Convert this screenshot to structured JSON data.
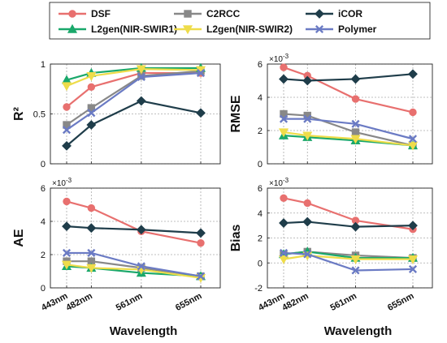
{
  "legend": {
    "entries": [
      {
        "name": "DSF",
        "color": "#e8706f",
        "marker": "circle"
      },
      {
        "name": "C2RCC",
        "color": "#888888",
        "marker": "square"
      },
      {
        "name": "iCOR",
        "color": "#1f3d4a",
        "marker": "diamond"
      },
      {
        "name": "L2gen(NIR-SWIR1)",
        "color": "#1aa86b",
        "marker": "triangle-up"
      },
      {
        "name": "L2gen(NIR-SWIR2)",
        "color": "#eedc4a",
        "marker": "triangle-down"
      },
      {
        "name": "Polymer",
        "color": "#6b7bc4",
        "marker": "x"
      }
    ]
  },
  "chart_data": [
    {
      "type": "line",
      "ylabel": "R²",
      "xlabel": "",
      "exponent": "",
      "categories": [
        "443nm",
        "482nm",
        "561nm",
        "655nm"
      ],
      "x": [
        443,
        482,
        561,
        655
      ],
      "ylim": [
        0,
        1
      ],
      "yticks": [
        0,
        0.5,
        1
      ],
      "ytick_labels": [
        "0",
        "0.5",
        "1"
      ],
      "grid": true,
      "series": [
        {
          "name": "DSF",
          "values": [
            0.57,
            0.77,
            0.91,
            0.91
          ]
        },
        {
          "name": "C2RCC",
          "values": [
            0.39,
            0.56,
            0.88,
            0.93
          ]
        },
        {
          "name": "iCOR",
          "values": [
            0.18,
            0.39,
            0.63,
            0.51
          ]
        },
        {
          "name": "L2gen(NIR-SWIR1)",
          "values": [
            0.84,
            0.91,
            0.96,
            0.96
          ]
        },
        {
          "name": "L2gen(NIR-SWIR2)",
          "values": [
            0.78,
            0.88,
            0.95,
            0.94
          ]
        },
        {
          "name": "Polymer",
          "values": [
            0.34,
            0.51,
            0.87,
            0.91
          ]
        }
      ]
    },
    {
      "type": "line",
      "ylabel": "RMSE",
      "xlabel": "",
      "exponent": "-3",
      "categories": [
        "443nm",
        "482nm",
        "561nm",
        "655nm"
      ],
      "x": [
        443,
        482,
        561,
        655
      ],
      "ylim": [
        0,
        6
      ],
      "yticks": [
        0,
        2,
        4,
        6
      ],
      "ytick_labels": [
        "0",
        "2",
        "4",
        "6"
      ],
      "grid": true,
      "series": [
        {
          "name": "DSF",
          "values": [
            5.8,
            5.3,
            3.9,
            3.1
          ]
        },
        {
          "name": "C2RCC",
          "values": [
            3.0,
            2.9,
            1.9,
            1.1
          ]
        },
        {
          "name": "iCOR",
          "values": [
            5.1,
            5.0,
            5.1,
            5.4
          ]
        },
        {
          "name": "L2gen(NIR-SWIR1)",
          "values": [
            1.7,
            1.6,
            1.4,
            1.1
          ]
        },
        {
          "name": "L2gen(NIR-SWIR2)",
          "values": [
            1.9,
            1.7,
            1.5,
            1.1
          ]
        },
        {
          "name": "Polymer",
          "values": [
            2.7,
            2.7,
            2.4,
            1.5
          ]
        }
      ]
    },
    {
      "type": "line",
      "ylabel": "AE",
      "xlabel": "Wavelength",
      "exponent": "-3",
      "categories": [
        "443nm",
        "482nm",
        "561nm",
        "655nm"
      ],
      "x": [
        443,
        482,
        561,
        655
      ],
      "ylim": [
        0,
        6
      ],
      "yticks": [
        0,
        2,
        4,
        6
      ],
      "ytick_labels": [
        "0",
        "2",
        "4",
        "6"
      ],
      "grid": true,
      "series": [
        {
          "name": "DSF",
          "values": [
            5.2,
            4.8,
            3.4,
            2.7
          ]
        },
        {
          "name": "C2RCC",
          "values": [
            1.6,
            1.6,
            1.2,
            0.7
          ]
        },
        {
          "name": "iCOR",
          "values": [
            3.7,
            3.6,
            3.5,
            3.3
          ]
        },
        {
          "name": "L2gen(NIR-SWIR1)",
          "values": [
            1.3,
            1.2,
            0.9,
            0.7
          ]
        },
        {
          "name": "L2gen(NIR-SWIR2)",
          "values": [
            1.4,
            1.2,
            1.1,
            0.6
          ]
        },
        {
          "name": "Polymer",
          "values": [
            2.1,
            2.1,
            1.3,
            0.7
          ]
        }
      ]
    },
    {
      "type": "line",
      "ylabel": "Bias",
      "xlabel": "Wavelength",
      "exponent": "-3",
      "categories": [
        "443nm",
        "482nm",
        "561nm",
        "655nm"
      ],
      "x": [
        443,
        482,
        561,
        655
      ],
      "ylim": [
        -2,
        6
      ],
      "yticks": [
        -2,
        0,
        2,
        4,
        6
      ],
      "ytick_labels": [
        "-2",
        "0",
        "2",
        "4",
        "6"
      ],
      "grid": true,
      "series": [
        {
          "name": "DSF",
          "values": [
            5.2,
            4.8,
            3.4,
            2.7
          ]
        },
        {
          "name": "C2RCC",
          "values": [
            0.7,
            0.9,
            0.6,
            0.4
          ]
        },
        {
          "name": "iCOR",
          "values": [
            3.2,
            3.3,
            2.9,
            3.0
          ]
        },
        {
          "name": "L2gen(NIR-SWIR1)",
          "values": [
            0.7,
            0.9,
            0.4,
            0.4
          ]
        },
        {
          "name": "L2gen(NIR-SWIR2)",
          "values": [
            0.3,
            0.6,
            0.3,
            0.3
          ]
        },
        {
          "name": "Polymer",
          "values": [
            0.8,
            0.7,
            -0.6,
            -0.5
          ]
        }
      ]
    }
  ]
}
